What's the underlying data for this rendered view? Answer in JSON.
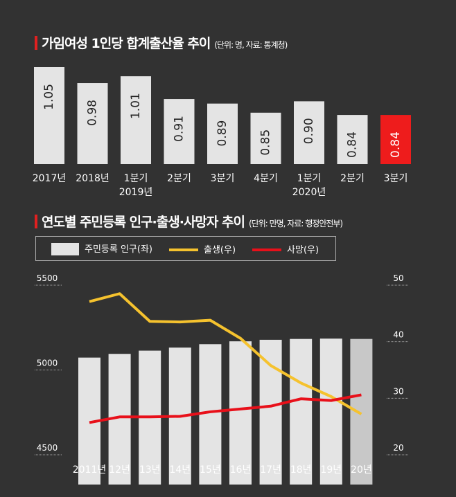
{
  "chart_data": [
    {
      "type": "bar",
      "title": "가임여성 1인당 합계출산율 추이",
      "unit_note": "(단위: 명, 자료: 통계청)",
      "categories": [
        [
          "2017년"
        ],
        [
          "2018년"
        ],
        [
          "1분기",
          "2019년"
        ],
        [
          "2분기"
        ],
        [
          "3분기"
        ],
        [
          "4분기"
        ],
        [
          "1분기",
          "2020년"
        ],
        [
          "2분기"
        ],
        [
          "3분기"
        ]
      ],
      "values": [
        1.05,
        0.98,
        1.01,
        0.91,
        0.89,
        0.85,
        0.9,
        0.84,
        0.84
      ],
      "labels": [
        "1.05",
        "0.98",
        "1.01",
        "0.91",
        "0.89",
        "0.85",
        "0.90",
        "0.84",
        "0.84"
      ],
      "highlight_index": 8,
      "colors": {
        "bar": "#e4e4e4",
        "highlight": "#ee1c1c"
      }
    },
    {
      "type": "bar+line",
      "title": "연도별 주민등록 인구·출생·사망자 추이",
      "unit_note": "(단위: 만명, 자료: 행정안전부)",
      "categories": [
        "2011년",
        "12년",
        "13년",
        "14년",
        "15년",
        "16년",
        "17년",
        "18년",
        "19년",
        "20년"
      ],
      "legend": [
        "주민등록 인구(좌)",
        "출생(우)",
        "사망(우)"
      ],
      "y_left": {
        "ticks": [
          "5500",
          "5000",
          "4500"
        ],
        "range": [
          4500,
          5500
        ]
      },
      "y_right": {
        "ticks": [
          "50",
          "40",
          "30",
          "20"
        ],
        "range": [
          20,
          50
        ]
      },
      "series": [
        {
          "name": "주민등록 인구(좌)",
          "axis": "left",
          "type": "bar",
          "values": [
            5073,
            5095,
            5114,
            5132,
            5152,
            5169,
            5178,
            5183,
            5185,
            5183
          ],
          "color": "#e4e4e4",
          "last_color": "#c8c8c8"
        },
        {
          "name": "출생(우)",
          "axis": "right",
          "type": "line",
          "values": [
            47.1,
            48.5,
            43.6,
            43.5,
            43.8,
            40.6,
            35.8,
            32.7,
            30.3,
            27.2
          ],
          "color": "#f5c22e"
        },
        {
          "name": "사망(우)",
          "axis": "right",
          "type": "line",
          "values": [
            25.7,
            26.7,
            26.7,
            26.8,
            27.6,
            28.1,
            28.6,
            29.9,
            29.6,
            30.6
          ],
          "color": "#e8101a"
        }
      ]
    }
  ]
}
